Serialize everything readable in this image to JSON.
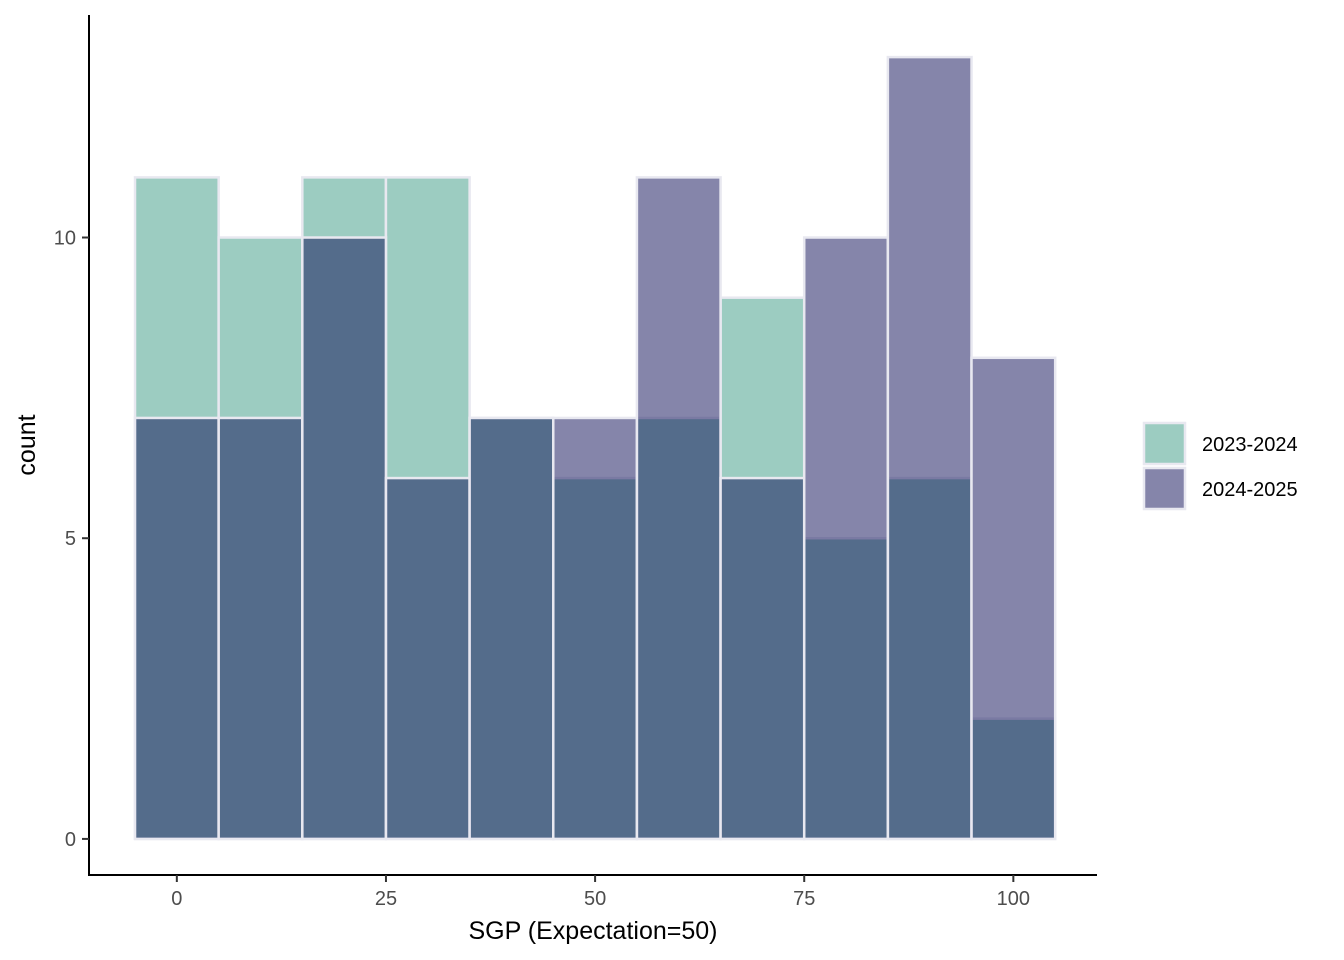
{
  "chart_data": {
    "type": "bar",
    "subtype": "overlapping-histogram",
    "title": "",
    "xlabel": "SGP (Expectation=50)",
    "ylabel": "count",
    "bin_width": 10,
    "bin_centers": [
      0,
      10,
      20,
      30,
      40,
      50,
      60,
      70,
      80,
      90,
      100
    ],
    "xlim": [
      -10.5,
      110
    ],
    "ylim": [
      -0.6,
      13.7
    ],
    "x_ticks": [
      0,
      25,
      50,
      75,
      100
    ],
    "x_tick_labels": [
      "0",
      "25",
      "50",
      "75",
      "100"
    ],
    "y_ticks": [
      0,
      5,
      10
    ],
    "y_tick_labels": [
      "0",
      "5",
      "10"
    ],
    "grid": false,
    "legend_position": "right",
    "series": [
      {
        "name": "2023-2024",
        "color": "#3a9a84",
        "values": [
          11,
          10,
          11,
          11,
          7,
          6,
          7,
          9,
          5,
          6,
          2
        ]
      },
      {
        "name": "2024-2025",
        "color": "#0b0b55",
        "values": [
          7,
          7,
          10,
          6,
          7,
          7,
          11,
          6,
          10,
          13,
          8
        ]
      }
    ],
    "series_opacity": 0.5,
    "bar_outline_color": "#e8e8f0"
  }
}
